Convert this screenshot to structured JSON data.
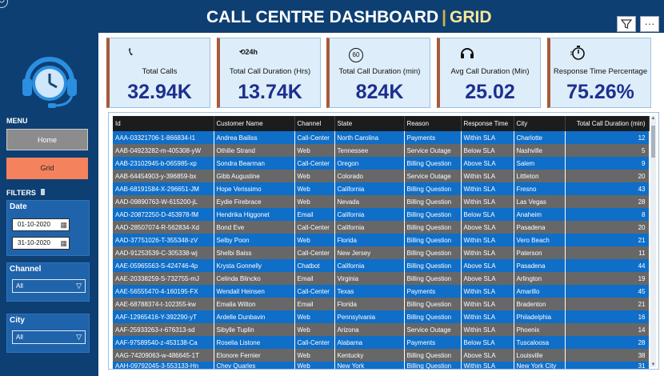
{
  "header": {
    "title_main": "CALL CENTRE DASHBOARD",
    "title_sep": "|",
    "title_sub": "GRID"
  },
  "icons": {
    "corner": "circle-arrow-icon",
    "filter": "funnel-icon",
    "more": "more-options-icon",
    "logo": "headset-clock-icon"
  },
  "sidebar": {
    "menu_title": "MENU",
    "nav": [
      {
        "label": "Home"
      },
      {
        "label": "Grid"
      }
    ],
    "filters_title": "FILTERS",
    "date": {
      "label": "Date",
      "start": "01-10-2020",
      "end": "31-10-2020"
    },
    "channel": {
      "label": "Channel",
      "selected": "All"
    },
    "city": {
      "label": "City",
      "selected": "All"
    }
  },
  "kpis": [
    {
      "label": "Total Calls",
      "value": "32.94K",
      "icon": "phone-icon"
    },
    {
      "label": "Total Call Duration (Hrs)",
      "value": "13.74K",
      "icon": "24h-icon"
    },
    {
      "label": "Total Call Duration (min)",
      "value": "824K",
      "icon": "60min-icon"
    },
    {
      "label": "Avg Call Duration (Min)",
      "value": "25.02",
      "icon": "headset-icon"
    },
    {
      "label": "Response Time Percentage",
      "value": "75.26%",
      "icon": "stopwatch-icon"
    }
  ],
  "table": {
    "columns": [
      "Id",
      "Customer Name",
      "Channel",
      "State",
      "Reason",
      "Response Time",
      "City",
      "Total Call Duration (min)"
    ],
    "rows": [
      [
        "AAA-03321706-1-866834-I1",
        "Andrea Bailiss",
        "Call-Center",
        "North Carolina",
        "Payments",
        "Within SLA",
        "Charlotte",
        "12"
      ],
      [
        "AAB-04923282-m-405308-yW",
        "Othilie Strand",
        "Web",
        "Tennessee",
        "Service Outage",
        "Below SLA",
        "Nashville",
        "5"
      ],
      [
        "AAB-23102945-b-065985-xp",
        "Sondra Bearman",
        "Call-Center",
        "Oregon",
        "Billing Question",
        "Above SLA",
        "Salem",
        "9"
      ],
      [
        "AAB-64454903-y-396859-bx",
        "Gibb Augustine",
        "Web",
        "Colorado",
        "Service Outage",
        "Within SLA",
        "Littleton",
        "20"
      ],
      [
        "AAB-68191584-X-296651-JM",
        "Hope Verissimo",
        "Web",
        "California",
        "Billing Question",
        "Within SLA",
        "Fresno",
        "43"
      ],
      [
        "AAD-09890763-W-615200-jL",
        "Eydie Firebrace",
        "Web",
        "Nevada",
        "Billing Question",
        "Within SLA",
        "Las Vegas",
        "28"
      ],
      [
        "AAD-20872250-D-453978-fM",
        "Hendrika Higgonet",
        "Email",
        "California",
        "Billing Question",
        "Below SLA",
        "Anaheim",
        "8"
      ],
      [
        "AAD-28507074-R-562834-Xd",
        "Bond Eve",
        "Call-Center",
        "California",
        "Billing Question",
        "Above SLA",
        "Pasadena",
        "20"
      ],
      [
        "AAD-37751026-T-355348-zV",
        "Selby Poon",
        "Web",
        "Florida",
        "Billing Question",
        "Within SLA",
        "Vero Beach",
        "21"
      ],
      [
        "AAD-91253539-C-305338-wj",
        "Shelbi Baiss",
        "Call-Center",
        "New Jersey",
        "Billing Question",
        "Within SLA",
        "Paterson",
        "11"
      ],
      [
        "AAE-05965563-S-424746-4p",
        "Krysta Gonnelly",
        "Chatbot",
        "California",
        "Billing Question",
        "Above SLA",
        "Pasadena",
        "44"
      ],
      [
        "AAE-20338259-S-732755-mJ",
        "Celinda Blincko",
        "Email",
        "Virginia",
        "Billing Question",
        "Above SLA",
        "Arlington",
        "19"
      ],
      [
        "AAE-56555470-4-160195-FX",
        "Wendall Heinsen",
        "Call-Center",
        "Texas",
        "Payments",
        "Within SLA",
        "Amarillo",
        "45"
      ],
      [
        "AAE-68788374-t-102355-kw",
        "Emalia Wilton",
        "Email",
        "Florida",
        "Billing Question",
        "Within SLA",
        "Bradenton",
        "21"
      ],
      [
        "AAF-12965416-Y-392290-yT",
        "Ardelle Dunbavin",
        "Web",
        "Pennsylvania",
        "Billing Question",
        "Within SLA",
        "Philadelphia",
        "16"
      ],
      [
        "AAF-25933263-r-676313-sd",
        "Sibylle Tuplin",
        "Web",
        "Arizona",
        "Service Outage",
        "Within SLA",
        "Phoenix",
        "14"
      ],
      [
        "AAF-97589540-z-453138-Ca",
        "Roselia Listone",
        "Call-Center",
        "Alabama",
        "Payments",
        "Below SLA",
        "Tuscaloosa",
        "28"
      ],
      [
        "AAG-74209063-w-486645-1T",
        "Elonore Fernier",
        "Web",
        "Kentucky",
        "Billing Question",
        "Above SLA",
        "Louisville",
        "38"
      ],
      [
        "AAH-09792045-3-553133-Hn",
        "Chev Quarles",
        "Web",
        "New York",
        "Billing Question",
        "Within SLA",
        "New York City",
        "31"
      ]
    ]
  },
  "colors": {
    "background": "#0e3f73",
    "row_blue": "#0f6ec8",
    "row_gray": "#676767",
    "kpi_value": "#1e2f8f",
    "kpi_accent": "#a75a3b",
    "grid_button": "#f4835d",
    "title_accent": "#f4e79a"
  }
}
